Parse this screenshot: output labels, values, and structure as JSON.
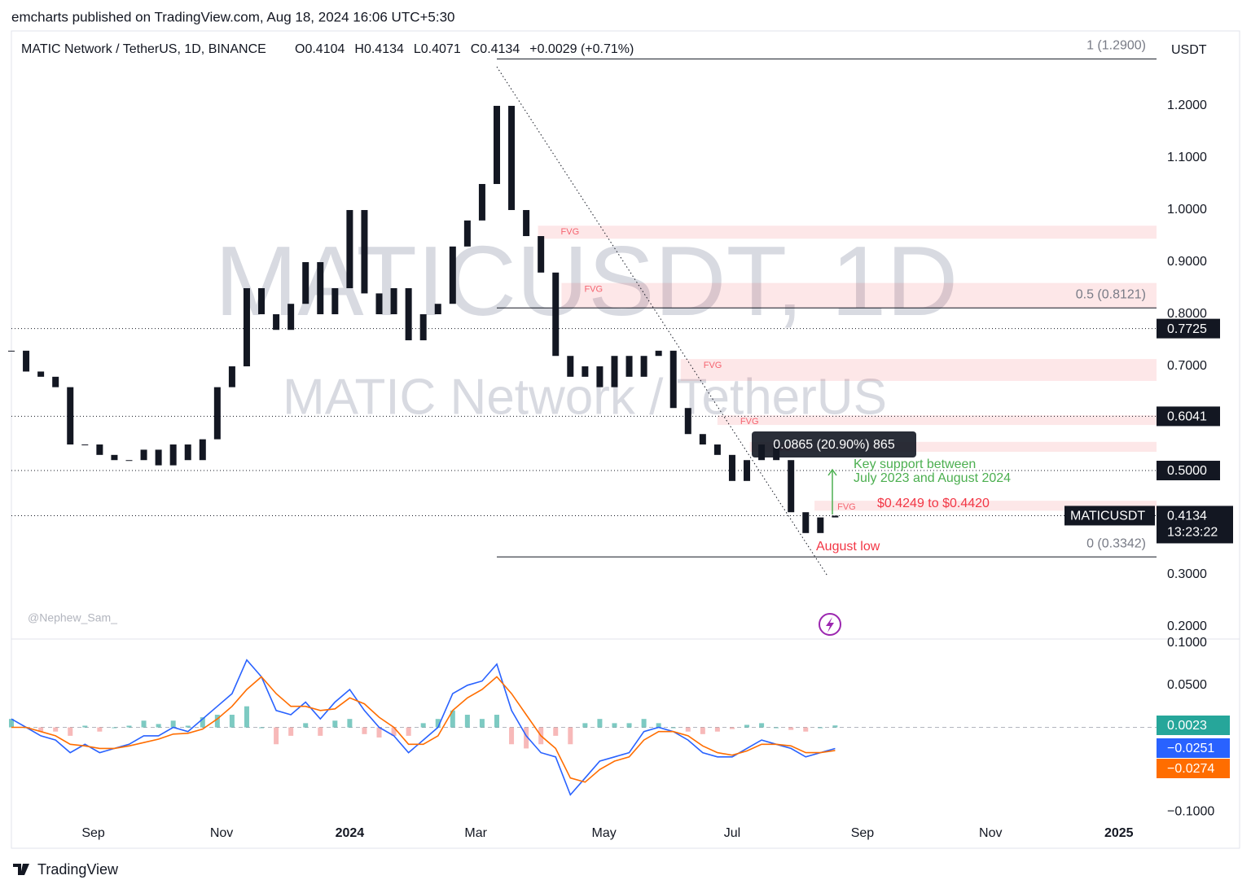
{
  "header": {
    "text": "emcharts published on TradingView.com, Aug 18, 2024 16:06 UTC+5:30"
  },
  "footer": {
    "logo": "TradingView",
    "author": "@Nephew_Sam_"
  },
  "annotations": {
    "support_1": "Key support between",
    "support_2": "July 2023 and August 2024",
    "range": "$0.4249 to $0.4420",
    "low": "August low",
    "measure": "0.0865 (20.90%) 865"
  },
  "chart_data": [
    {
      "type": "candlestick",
      "title": "MATIC Network / TetherUS, 1D, BINANCE",
      "ohlc_labels": [
        "O0.4104",
        "H0.4134",
        "L0.4071",
        "C0.4134",
        "+0.0029 (+0.71%)"
      ],
      "watermark": "MATICUSDT, 1D",
      "watermark_subtitle": "MATIC Network / TetherUS",
      "axis_unit": "USDT",
      "xlim": [
        0,
        77.85
      ],
      "xticks": [
        {
          "value": 5.57,
          "label": "Sep"
        },
        {
          "value": 14.29,
          "label": "Nov"
        },
        {
          "value": 23,
          "label": "2024"
        },
        {
          "value": 31.57,
          "label": "Mar"
        },
        {
          "value": 40.29,
          "label": "May"
        },
        {
          "value": 49,
          "label": "Jul"
        },
        {
          "value": 57.86,
          "label": "Sep"
        },
        {
          "value": 66.57,
          "label": "Nov"
        },
        {
          "value": 75.29,
          "label": "2025"
        }
      ],
      "ylim": [
        0.1766,
        1.3438
      ],
      "yticks": [
        {
          "value": 1.2,
          "label": "1.2000"
        },
        {
          "value": 1.1,
          "label": "1.1000"
        },
        {
          "value": 1,
          "label": "1.0000"
        },
        {
          "value": 0.9,
          "label": "0.9000"
        },
        {
          "value": 0.8,
          "label": "0.8000"
        },
        {
          "value": 0.7,
          "label": "0.7000"
        },
        {
          "value": 0.3,
          "label": "0.3000"
        },
        {
          "value": 0.2,
          "label": "0.2000"
        }
      ],
      "series": [
        {
          "name": "MATICUSDT",
          "color": "#131722",
          "last_label": "0.4134",
          "countdown": "13:23:22",
          "values": [
            0.73,
            0.69,
            0.68,
            0.66,
            0.55,
            0.55,
            0.53,
            0.52,
            0.52,
            0.54,
            0.51,
            0.55,
            0.52,
            0.56,
            0.66,
            0.7,
            0.85,
            0.8,
            0.77,
            0.82,
            0.9,
            0.8,
            0.85,
            1.0,
            0.84,
            0.8,
            0.85,
            0.75,
            0.8,
            0.82,
            0.93,
            0.98,
            1.05,
            1.2,
            1.0,
            0.95,
            0.88,
            0.72,
            0.68,
            0.7,
            0.66,
            0.72,
            0.68,
            0.72,
            0.73,
            0.62,
            0.57,
            0.55,
            0.53,
            0.48,
            0.52,
            0.55,
            0.52,
            0.42,
            0.38,
            0.41,
            0.4134
          ]
        }
      ],
      "levels": [
        0.7725,
        0.6041,
        {
          "value": 0.5,
          "label": "0.5000"
        }
      ],
      "fib": [
        {
          "value": 1.29,
          "label": "1 (1.2900)",
          "x": 33
        },
        {
          "value": 0.8121,
          "label": "0.5 (0.8121)",
          "x": 33
        },
        {
          "value": 0.3342,
          "label": "0 (0.3342)",
          "x": 33
        }
      ],
      "trendline": {
        "x": [
          33,
          55.5
        ],
        "y": [
          1.275,
          0.297
        ]
      },
      "zones": [
        {
          "x": 35.8,
          "top": 0.97,
          "bottom": 0.945,
          "label": "FVG"
        },
        {
          "x": 37.4,
          "top": 0.86,
          "bottom": 0.8125,
          "label": "FVG"
        },
        {
          "x": 45.5,
          "top": 0.714,
          "bottom": 0.672,
          "label": "FVG"
        },
        {
          "x": 48,
          "top": 0.606,
          "bottom": 0.5875,
          "label": "FVG"
        },
        {
          "x": 50.2,
          "top": 0.555,
          "bottom": 0.536,
          "label": "FVG"
        },
        {
          "x": 54.6,
          "top": 0.442,
          "bottom": 0.423,
          "label": "FVG"
        }
      ]
    },
    {
      "type": "line",
      "xlim": [
        0,
        77.85
      ],
      "ylim": [
        -0.1144,
        0.1029
      ],
      "yticks": [
        {
          "value": 0.1,
          "label": "0.1000"
        },
        {
          "value": 0.05,
          "label": "0.0500"
        },
        {
          "value": -0.1,
          "label": "−0.1000"
        }
      ],
      "series": [
        {
          "style": "histogram",
          "color": "#26a69a",
          "negative_color": "#f28b8b",
          "last_label": "0.0023",
          "values": [
            0.01,
            0,
            -0.005,
            -0.005,
            -0.01,
            0.002,
            -0.005,
            0,
            0.002,
            0.008,
            0.004,
            0.008,
            0.002,
            0.012,
            0.015,
            0.015,
            0.025,
            0,
            -0.02,
            -0.01,
            0.005,
            -0.01,
            0.008,
            0.01,
            -0.008,
            -0.012,
            -0.01,
            -0.01,
            0.005,
            0.01,
            0.02,
            0.015,
            0.01,
            0.015,
            -0.02,
            -0.025,
            -0.02,
            -0.01,
            -0.02,
            0.005,
            0.01,
            0.005,
            0.005,
            0.01,
            0.005,
            0,
            -0.005,
            -0.008,
            -0.005,
            -0.002,
            0.003,
            0.005,
            0,
            -0.003,
            -0.005,
            0,
            0.0023
          ]
        },
        {
          "style": "line",
          "color": "#2962ff",
          "last_label": "−0.0251",
          "values": [
            0.01,
            0,
            -0.01,
            -0.015,
            -0.03,
            -0.02,
            -0.03,
            -0.025,
            -0.02,
            -0.01,
            -0.01,
            0,
            -0.005,
            0.01,
            0.025,
            0.04,
            0.08,
            0.06,
            0.02,
            0.015,
            0.03,
            0.01,
            0.03,
            0.045,
            0.02,
            0,
            -0.01,
            -0.03,
            -0.015,
            0,
            0.04,
            0.05,
            0.055,
            0.075,
            0.02,
            -0.01,
            -0.03,
            -0.035,
            -0.08,
            -0.06,
            -0.04,
            -0.035,
            -0.03,
            -0.005,
            0,
            -0.005,
            -0.015,
            -0.03,
            -0.035,
            -0.035,
            -0.025,
            -0.015,
            -0.02,
            -0.025,
            -0.035,
            -0.03,
            -0.0251
          ]
        },
        {
          "style": "line",
          "color": "#ff6d00",
          "last_label": "−0.0274",
          "values": [
            0,
            0,
            -0.005,
            -0.01,
            -0.02,
            -0.022,
            -0.025,
            -0.025,
            -0.022,
            -0.018,
            -0.014,
            -0.008,
            -0.007,
            -0.002,
            0.01,
            0.025,
            0.045,
            0.06,
            0.04,
            0.025,
            0.025,
            0.02,
            0.022,
            0.035,
            0.028,
            0.012,
            0,
            -0.02,
            -0.02,
            -0.01,
            0.02,
            0.035,
            0.045,
            0.06,
            0.04,
            0.015,
            -0.01,
            -0.025,
            -0.06,
            -0.065,
            -0.05,
            -0.04,
            -0.035,
            -0.015,
            -0.005,
            -0.005,
            -0.01,
            -0.022,
            -0.03,
            -0.033,
            -0.028,
            -0.02,
            -0.02,
            -0.022,
            -0.03,
            -0.03,
            -0.0274
          ]
        }
      ]
    }
  ]
}
